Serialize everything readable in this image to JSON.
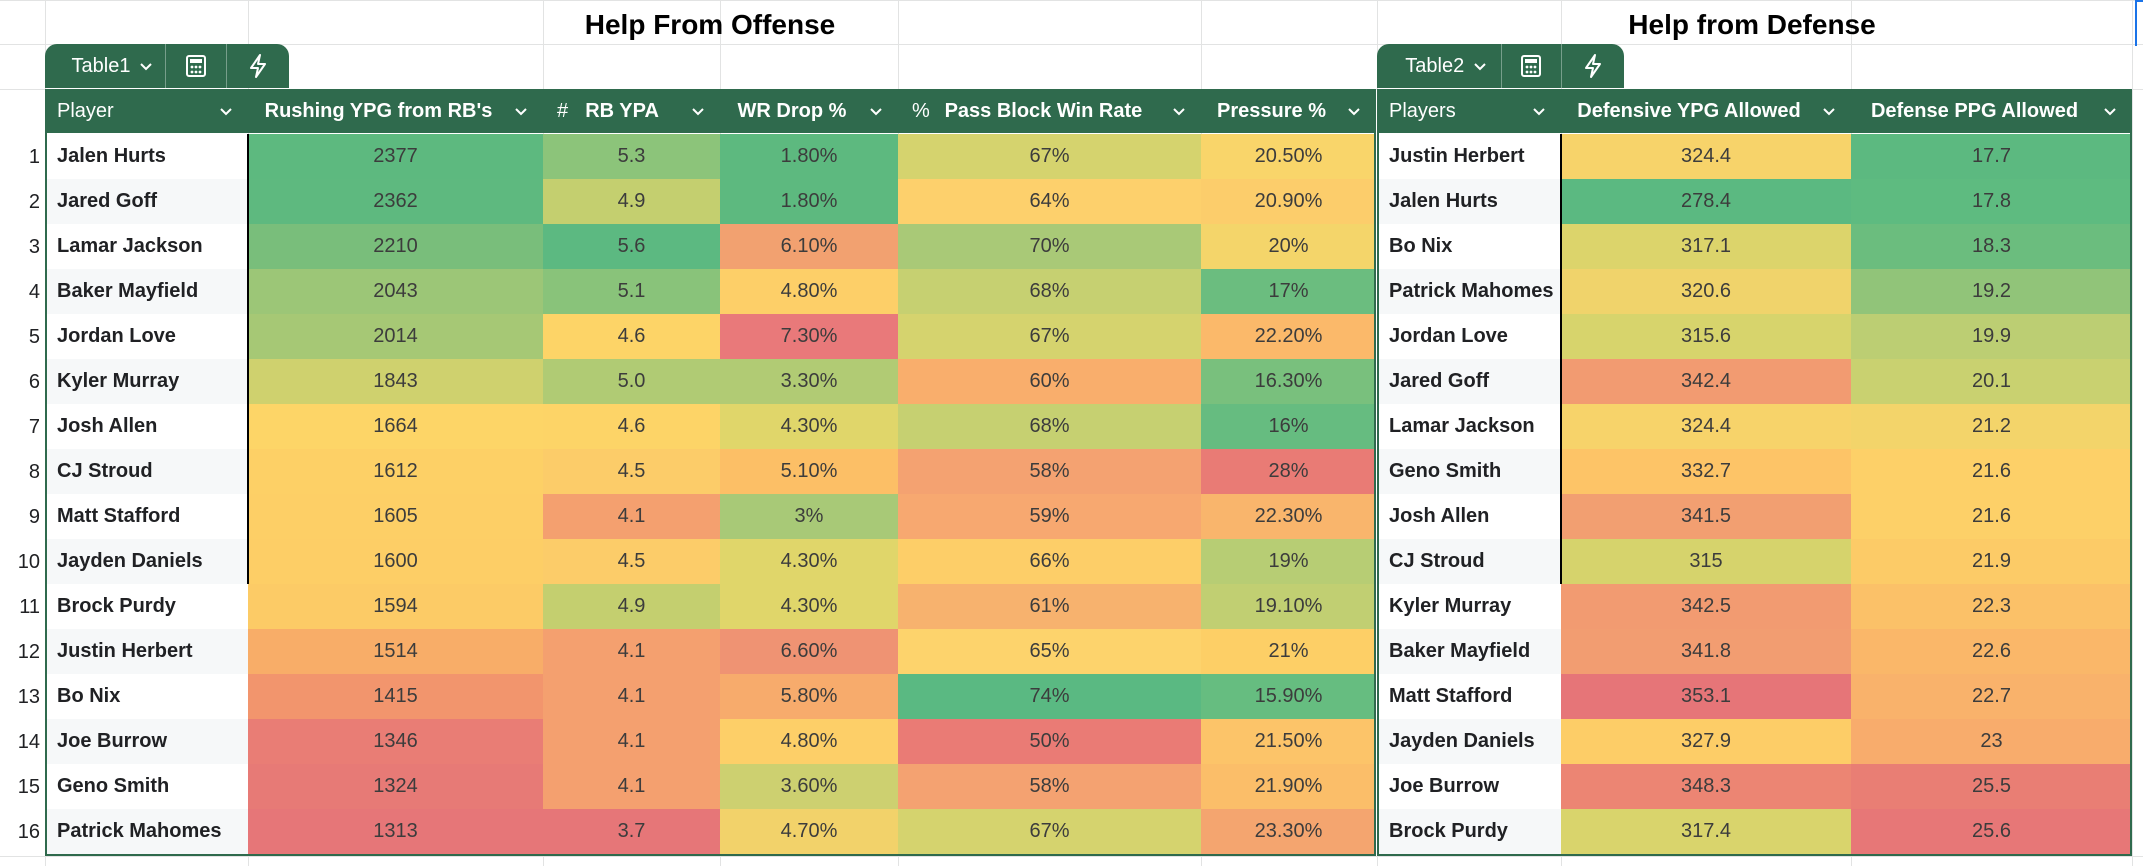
{
  "titles": {
    "offense": "Help From Offense",
    "defense": "Help from Defense"
  },
  "tables": {
    "offense_tab": "Table1",
    "defense_tab": "Table2"
  },
  "offense": {
    "headers": [
      "Player",
      "Rushing YPG from RB's",
      "RB YPA",
      "WR Drop %",
      "Pass Block Win Rate",
      "Pressure %"
    ],
    "header_prefix": {
      "rb_ypa": "#",
      "pass_block": "%"
    },
    "rows": [
      [
        "Jalen Hurts",
        "2377",
        "5.3",
        "1.80%",
        "67%",
        "20.50%"
      ],
      [
        "Jared Goff",
        "2362",
        "4.9",
        "1.80%",
        "64%",
        "20.90%"
      ],
      [
        "Lamar Jackson",
        "2210",
        "5.6",
        "6.10%",
        "70%",
        "20%"
      ],
      [
        "Baker Mayfield",
        "2043",
        "5.1",
        "4.80%",
        "68%",
        "17%"
      ],
      [
        "Jordan Love",
        "2014",
        "4.6",
        "7.30%",
        "67%",
        "22.20%"
      ],
      [
        "Kyler Murray",
        "1843",
        "5.0",
        "3.30%",
        "60%",
        "16.30%"
      ],
      [
        "Josh Allen",
        "1664",
        "4.6",
        "4.30%",
        "68%",
        "16%"
      ],
      [
        "CJ Stroud",
        "1612",
        "4.5",
        "5.10%",
        "58%",
        "28%"
      ],
      [
        "Matt Stafford",
        "1605",
        "4.1",
        "3%",
        "59%",
        "22.30%"
      ],
      [
        "Jayden Daniels",
        "1600",
        "4.5",
        "4.30%",
        "66%",
        "19%"
      ],
      [
        "Brock Purdy",
        "1594",
        "4.9",
        "4.30%",
        "61%",
        "19.10%"
      ],
      [
        "Justin Herbert",
        "1514",
        "4.1",
        "6.60%",
        "65%",
        "21%"
      ],
      [
        "Bo Nix",
        "1415",
        "4.1",
        "5.80%",
        "74%",
        "15.90%"
      ],
      [
        "Joe Burrow",
        "1346",
        "4.1",
        "4.80%",
        "50%",
        "21.50%"
      ],
      [
        "Geno Smith",
        "1324",
        "4.1",
        "3.60%",
        "58%",
        "21.90%"
      ],
      [
        "Patrick Mahomes",
        "1313",
        "3.7",
        "4.70%",
        "67%",
        "23.30%"
      ]
    ],
    "colors": [
      [
        null,
        "#5db97f",
        "#8cc47a",
        "#5db97f",
        "#d5d36e",
        "#f9d56a"
      ],
      [
        null,
        "#5eb97f",
        "#c4cf6f",
        "#5db97f",
        "#fdd06c",
        "#fccd6b"
      ],
      [
        null,
        "#79be7b",
        "#5cb981",
        "#f2a170",
        "#a9c977",
        "#f4d56a"
      ],
      [
        null,
        "#9cc677",
        "#89c37a",
        "#fdcf68",
        "#c6d071",
        "#6bbd7f"
      ],
      [
        null,
        "#a6c875",
        "#fdd467",
        "#e9797a",
        "#d5d36e",
        "#fbb96a"
      ],
      [
        null,
        "#cfd16e",
        "#b0cb74",
        "#b1cb74",
        "#f9ae6c",
        "#79c07d"
      ],
      [
        null,
        "#fdd567",
        "#fdd467",
        "#e0d66a",
        "#c6d071",
        "#66bc80"
      ],
      [
        null,
        "#fdd066",
        "#fccc69",
        "#fcbf66",
        "#f4a271",
        "#e97b75"
      ],
      [
        null,
        "#fdcf66",
        "#f4a06f",
        "#a8c977",
        "#f7a870",
        "#f9b56c"
      ],
      [
        null,
        "#fdce66",
        "#fccc69",
        "#e0d66a",
        "#fdce68",
        "#b7cd74"
      ],
      [
        null,
        "#fccb66",
        "#c4cf6f",
        "#e0d66a",
        "#f7b26e",
        "#c1cf72"
      ],
      [
        null,
        "#f8ad68",
        "#f4a06f",
        "#ef9373",
        "#fdd36c",
        "#fdcf66"
      ],
      [
        null,
        "#f2956d",
        "#f4a06f",
        "#f7ab6c",
        "#5ab982",
        "#66bd80"
      ],
      [
        null,
        "#e97d75",
        "#f4a06f",
        "#fdcf68",
        "#ea7b75",
        "#fcc469"
      ],
      [
        null,
        "#e77a76",
        "#f4a06f",
        "#cdd070",
        "#f4a271",
        "#fbbe69"
      ],
      [
        null,
        "#e67678",
        "#e67678",
        "#f2d26a",
        "#d5d36e",
        "#f4a56f"
      ]
    ]
  },
  "defense": {
    "headers": [
      "Players",
      "Defensive YPG Allowed",
      "Defense PPG Allowed"
    ],
    "rows": [
      [
        "Justin Herbert",
        "324.4",
        "17.7"
      ],
      [
        "Jalen Hurts",
        "278.4",
        "17.8"
      ],
      [
        "Bo Nix",
        "317.1",
        "18.3"
      ],
      [
        "Patrick Mahomes",
        "320.6",
        "19.2"
      ],
      [
        "Jordan Love",
        "315.6",
        "19.9"
      ],
      [
        "Jared Goff",
        "342.4",
        "20.1"
      ],
      [
        "Lamar Jackson",
        "324.4",
        "21.2"
      ],
      [
        "Geno Smith",
        "332.7",
        "21.6"
      ],
      [
        "Josh Allen",
        "341.5",
        "21.6"
      ],
      [
        "CJ Stroud",
        "315",
        "21.9"
      ],
      [
        "Kyler Murray",
        "342.5",
        "22.3"
      ],
      [
        "Baker Mayfield",
        "341.8",
        "22.6"
      ],
      [
        "Matt Stafford",
        "353.1",
        "22.7"
      ],
      [
        "Jayden Daniels",
        "327.9",
        "23"
      ],
      [
        "Joe Burrow",
        "348.3",
        "25.5"
      ],
      [
        "Brock Purdy",
        "317.4",
        "25.6"
      ]
    ],
    "colors": [
      [
        null,
        "#f7d36a",
        "#5cb980"
      ],
      [
        null,
        "#5bb981",
        "#5ebb80"
      ],
      [
        null,
        "#dcd46b",
        "#6bbd7e"
      ],
      [
        null,
        "#f0d36b",
        "#91c479"
      ],
      [
        null,
        "#d7d46c",
        "#bcce73"
      ],
      [
        null,
        "#f29b71",
        "#c9d170"
      ],
      [
        null,
        "#f7d36a",
        "#f3d46a"
      ],
      [
        null,
        "#fdc467",
        "#fdd068"
      ],
      [
        null,
        "#f29f71",
        "#fdd068"
      ],
      [
        null,
        "#d6d36c",
        "#fccb67"
      ],
      [
        null,
        "#f29b71",
        "#fbc168"
      ],
      [
        null,
        "#f29d71",
        "#fab769"
      ],
      [
        null,
        "#e67578",
        "#f9b26b"
      ],
      [
        null,
        "#fdcd67",
        "#f8ac6c"
      ],
      [
        null,
        "#ec8573",
        "#e97e74"
      ],
      [
        null,
        "#d9d46c",
        "#e77777"
      ]
    ]
  },
  "row_numbers": [
    "1",
    "2",
    "3",
    "4",
    "5",
    "6",
    "7",
    "8",
    "9",
    "10",
    "11",
    "12",
    "13",
    "14",
    "15",
    "16"
  ]
}
